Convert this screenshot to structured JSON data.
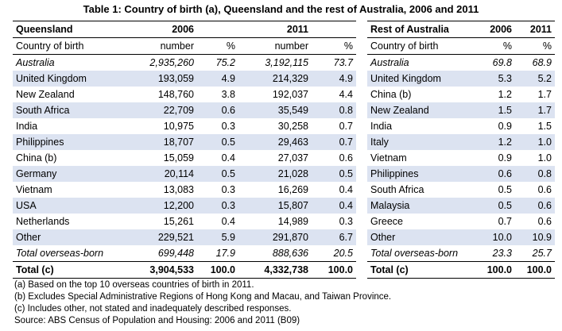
{
  "title": "Table 1: Country of birth (a), Queensland and the rest of Australia, 2006 and 2011",
  "qld": {
    "header": [
      "Queensland",
      "2006",
      "",
      "2011",
      ""
    ],
    "subheader": [
      "Country of birth",
      "number",
      "%",
      "number",
      "%"
    ],
    "rows": [
      [
        "Australia",
        "2,935,260",
        "75.2",
        "3,192,115",
        "73.7"
      ],
      [
        "United Kingdom",
        "193,059",
        "4.9",
        "214,329",
        "4.9"
      ],
      [
        "New Zealand",
        "148,760",
        "3.8",
        "192,037",
        "4.4"
      ],
      [
        "South Africa",
        "22,709",
        "0.6",
        "35,549",
        "0.8"
      ],
      [
        "India",
        "10,975",
        "0.3",
        "30,258",
        "0.7"
      ],
      [
        "Philippines",
        "18,707",
        "0.5",
        "29,463",
        "0.7"
      ],
      [
        "China (b)",
        "15,059",
        "0.4",
        "27,037",
        "0.6"
      ],
      [
        "Germany",
        "20,114",
        "0.5",
        "21,028",
        "0.5"
      ],
      [
        "Vietnam",
        "13,083",
        "0.3",
        "16,269",
        "0.4"
      ],
      [
        "USA",
        "12,200",
        "0.3",
        "15,807",
        "0.4"
      ],
      [
        "Netherlands",
        "15,261",
        "0.4",
        "14,989",
        "0.3"
      ],
      [
        "Other",
        "229,521",
        "5.9",
        "291,870",
        "6.7"
      ],
      [
        "Total overseas-born",
        "699,448",
        "17.9",
        "888,636",
        "20.5"
      ]
    ],
    "total": [
      "Total (c)",
      "3,904,533",
      "100.0",
      "4,332,738",
      "100.0"
    ]
  },
  "roa": {
    "header": [
      "Rest of Australia",
      "2006",
      "2011"
    ],
    "subheader": [
      "Country of birth",
      "%",
      "%"
    ],
    "rows": [
      [
        "Australia",
        "69.8",
        "68.9"
      ],
      [
        "United Kingdom",
        "5.3",
        "5.2"
      ],
      [
        "China (b)",
        "1.2",
        "1.7"
      ],
      [
        "New Zealand",
        "1.5",
        "1.7"
      ],
      [
        "India",
        "0.9",
        "1.5"
      ],
      [
        "Italy",
        "1.2",
        "1.0"
      ],
      [
        "Vietnam",
        "0.9",
        "1.0"
      ],
      [
        "Philippines",
        "0.6",
        "0.8"
      ],
      [
        "South Africa",
        "0.5",
        "0.6"
      ],
      [
        "Malaysia",
        "0.5",
        "0.6"
      ],
      [
        "Greece",
        "0.7",
        "0.6"
      ],
      [
        "Other",
        "10.0",
        "10.9"
      ],
      [
        "Total overseas-born",
        "23.3",
        "25.7"
      ]
    ],
    "total": [
      "Total (c)",
      "100.0",
      "100.0"
    ]
  },
  "notes": [
    "(a) Based on the top 10 overseas countries of birth in 2011.",
    "(b) Excludes Special Administrative Regions of Hong Kong and Macau, and Taiwan Province.",
    "(c) Includes other, not stated and inadequately described responses.",
    "Source: ABS Census of Population and Housing: 2006 and 2011 (B09)"
  ],
  "colors": {
    "row_shade": "#dce3f1",
    "rule": "#000000"
  }
}
